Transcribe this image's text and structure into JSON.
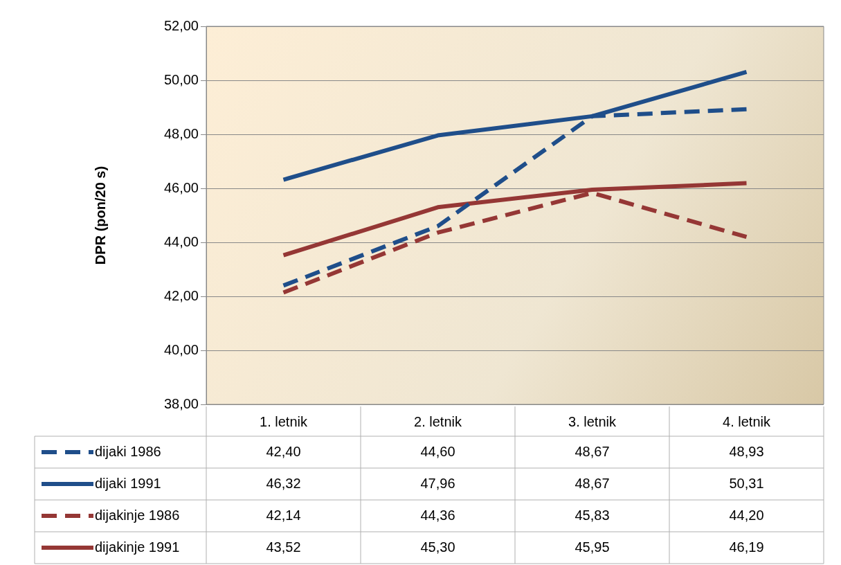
{
  "chart_data": {
    "type": "line",
    "ylabel": "DPR (pon/20 s)",
    "categories": [
      "1. letnik",
      "2. letnik",
      "3. letnik",
      "4. letnik"
    ],
    "series": [
      {
        "name": "dijaki 1986",
        "color": "#1f4e8a",
        "line_style": "dashed",
        "values": [
          42.4,
          44.6,
          48.67,
          48.93
        ],
        "value_labels": [
          "42,40",
          "44,60",
          "48,67",
          "48,93"
        ]
      },
      {
        "name": "dijaki 1991",
        "color": "#1f4e8a",
        "line_style": "solid",
        "values": [
          46.32,
          47.96,
          48.67,
          50.31
        ],
        "value_labels": [
          "46,32",
          "47,96",
          "48,67",
          "50,31"
        ]
      },
      {
        "name": "dijakinje 1986",
        "color": "#953735",
        "line_style": "dashed",
        "values": [
          42.14,
          44.36,
          45.83,
          44.2
        ],
        "value_labels": [
          "42,14",
          "44,36",
          "45,83",
          "44,20"
        ]
      },
      {
        "name": "dijakinje 1991",
        "color": "#953735",
        "line_style": "solid",
        "values": [
          43.52,
          45.3,
          45.95,
          46.19
        ],
        "value_labels": [
          "43,52",
          "45,30",
          "45,95",
          "46,19"
        ]
      }
    ],
    "ylim": [
      38,
      52
    ],
    "yticks": [
      {
        "value": 38,
        "label": "38,00"
      },
      {
        "value": 40,
        "label": "40,00"
      },
      {
        "value": 42,
        "label": "42,00"
      },
      {
        "value": 44,
        "label": "44,00"
      },
      {
        "value": 46,
        "label": "46,00"
      },
      {
        "value": 48,
        "label": "48,00"
      },
      {
        "value": 50,
        "label": "50,00"
      },
      {
        "value": 52,
        "label": "52,00"
      }
    ],
    "grid": "y",
    "legend": "bottom",
    "marker": "none"
  }
}
